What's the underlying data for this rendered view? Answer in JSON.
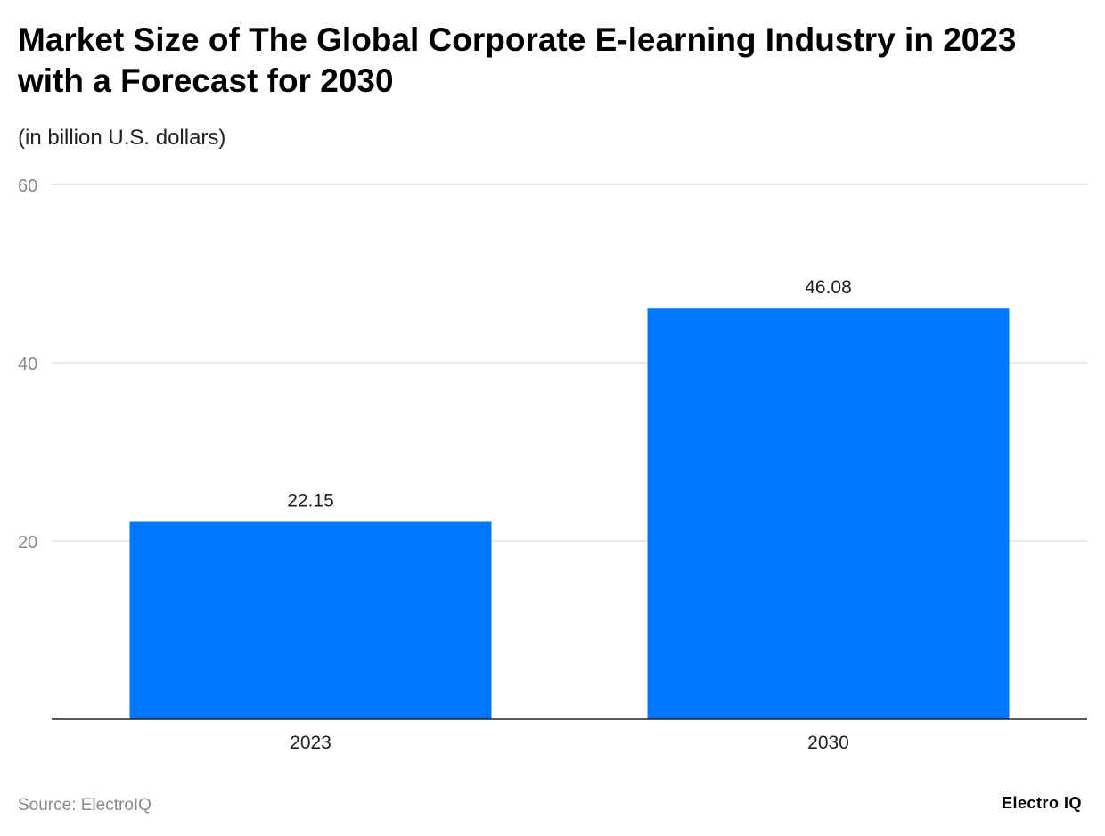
{
  "chart_data": {
    "type": "bar",
    "title": "Market Size of The Global Corporate E-learning Industry in 2023 with a Forecast for 2030",
    "subtitle": "(in billion U.S. dollars)",
    "categories": [
      "2023",
      "2030"
    ],
    "values": [
      22.15,
      46.08
    ],
    "data_labels": [
      "22.15",
      "46.08"
    ],
    "xlabel": "",
    "ylabel": "",
    "ylim": [
      0,
      60
    ],
    "yticks": [
      20,
      40,
      60
    ],
    "grid": true,
    "bar_color": "#0077FF"
  },
  "footer": {
    "source": "Source: ElectroIQ",
    "logo": "Electro IQ"
  }
}
